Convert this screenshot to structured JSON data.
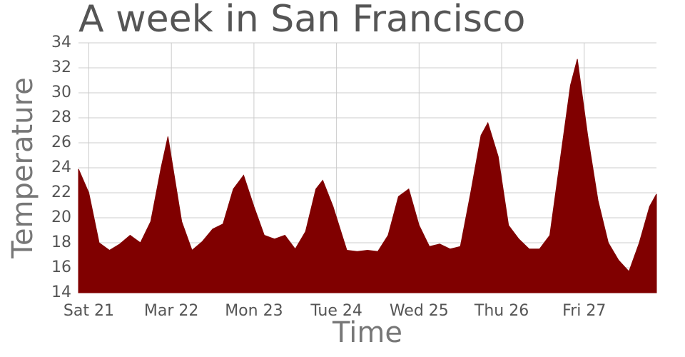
{
  "chart_data": {
    "type": "area",
    "title": "A week in San Francisco",
    "x_label": "Time",
    "y_label": "Temperature",
    "color": "#800000",
    "grid": true,
    "xlim": [
      -3,
      165
    ],
    "ylim": [
      14,
      34
    ],
    "xticks": [
      {
        "value": 0,
        "label": "Sat 21"
      },
      {
        "value": 24,
        "label": "Mar 22"
      },
      {
        "value": 48,
        "label": "Mon 23"
      },
      {
        "value": 72,
        "label": "Tue 24"
      },
      {
        "value": 96,
        "label": "Wed 25"
      },
      {
        "value": 120,
        "label": "Thu 26"
      },
      {
        "value": 144,
        "label": "Fri 27"
      }
    ],
    "yticks": [
      14,
      16,
      18,
      20,
      22,
      24,
      26,
      28,
      30,
      32,
      34
    ],
    "x": [
      -3,
      0,
      3,
      6,
      9,
      12,
      15,
      18,
      21,
      23,
      27,
      30,
      33,
      36,
      39,
      42,
      45,
      48,
      51,
      54,
      57,
      60,
      63,
      66,
      68,
      71,
      75,
      78,
      81,
      84,
      87,
      90,
      93,
      96,
      99,
      102,
      105,
      108,
      111,
      114,
      116,
      119,
      122,
      125,
      128,
      131,
      134,
      137,
      140,
      142,
      145,
      148,
      151,
      154,
      157,
      160,
      163,
      165
    ],
    "values": [
      23.9,
      22,
      18,
      17.4,
      17.9,
      18.6,
      18,
      19.7,
      24,
      26.5,
      19.7,
      17.4,
      18.1,
      19.1,
      19.5,
      22.3,
      23.4,
      20.9,
      18.6,
      18.3,
      18.6,
      17.5,
      18.9,
      22.3,
      23,
      20.9,
      17.4,
      17.3,
      17.4,
      17.3,
      18.6,
      21.7,
      22.3,
      19.4,
      17.7,
      17.9,
      17.5,
      17.7,
      22,
      26.6,
      27.6,
      24.9,
      19.4,
      18.3,
      17.5,
      17.5,
      18.6,
      24.6,
      30.6,
      32.7,
      26.6,
      21.4,
      18,
      16.6,
      15.7,
      18,
      20.9,
      21.9
    ]
  }
}
